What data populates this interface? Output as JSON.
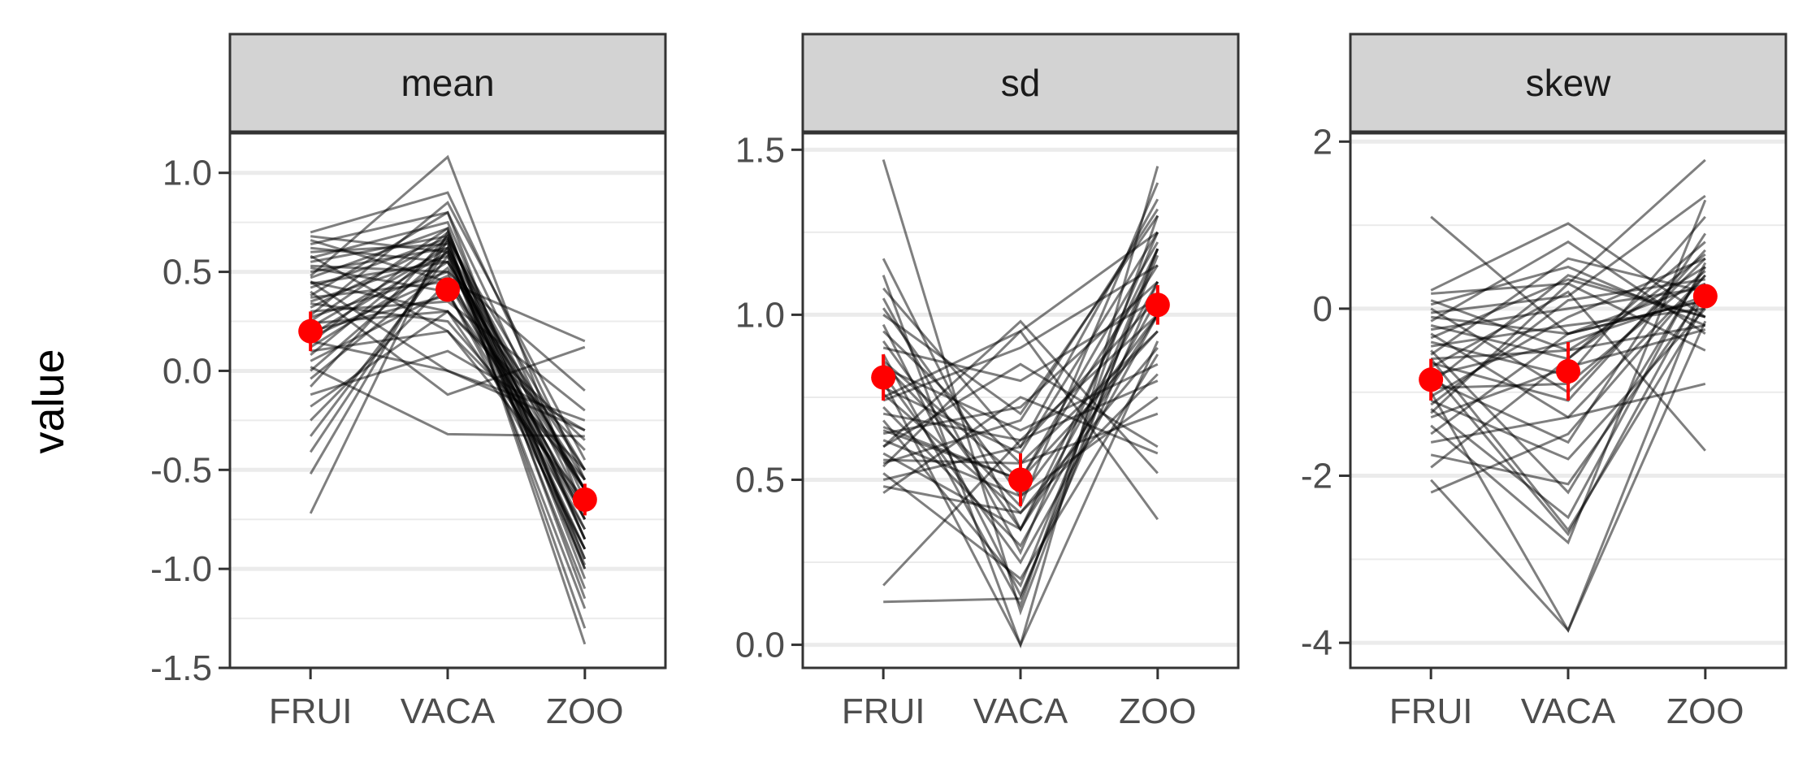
{
  "chart_data": {
    "type": "line",
    "facet_layout": "1 row, 3 columns, independent y scales",
    "ylabel": "value",
    "grid": true,
    "legend": "none",
    "colors": {
      "subject_lines": "#000000",
      "summary_points": "#ff0000",
      "strip_background": "#d3d3d3",
      "gridlines": "#ebebeb"
    },
    "x_categories": [
      "FRUI",
      "VACA",
      "ZOO"
    ],
    "panels": [
      {
        "strip_label": "mean",
        "ylim": [
          -1.5,
          1.2
        ],
        "yticks": [
          1.0,
          0.5,
          0.0,
          -0.5,
          -1.0,
          -1.5
        ],
        "ytick_labels": [
          "1.0",
          "0.5",
          "0.0",
          "-0.5",
          "-1.0",
          "-1.5"
        ],
        "summary": [
          {
            "x": "FRUI",
            "y": 0.2,
            "lo": 0.1,
            "hi": 0.3
          },
          {
            "x": "VACA",
            "y": 0.41,
            "lo": 0.35,
            "hi": 0.47
          },
          {
            "x": "ZOO",
            "y": -0.65,
            "lo": -0.73,
            "hi": -0.57
          }
        ],
        "subject_lines": [
          [
            -0.72,
            0.7,
            -0.85
          ],
          [
            -0.52,
            0.66,
            -1.3
          ],
          [
            -0.41,
            0.62,
            -1.0
          ],
          [
            -0.33,
            0.58,
            -0.9
          ],
          [
            -0.25,
            0.45,
            -0.6
          ],
          [
            -0.18,
            0.3,
            -0.7
          ],
          [
            -0.12,
            0.1,
            -0.3
          ],
          [
            -0.08,
            0.68,
            -1.38
          ],
          [
            -0.04,
            0.52,
            -0.55
          ],
          [
            0.0,
            0.6,
            -0.75
          ],
          [
            0.02,
            -0.32,
            -0.33
          ],
          [
            0.05,
            0.4,
            -0.8
          ],
          [
            0.08,
            0.65,
            -1.1
          ],
          [
            0.1,
            0.2,
            -0.65
          ],
          [
            0.12,
            0.55,
            -0.5
          ],
          [
            0.14,
            0.7,
            -0.95
          ],
          [
            0.15,
            0.0,
            -0.25
          ],
          [
            0.17,
            0.48,
            -0.7
          ],
          [
            0.18,
            0.6,
            -1.2
          ],
          [
            0.2,
            0.38,
            -0.6
          ],
          [
            0.22,
            0.62,
            -0.85
          ],
          [
            0.24,
            0.3,
            -0.4
          ],
          [
            0.25,
            0.72,
            -1.05
          ],
          [
            0.27,
            0.5,
            -0.9
          ],
          [
            0.28,
            0.85,
            -0.45
          ],
          [
            0.3,
            0.35,
            -0.2
          ],
          [
            0.32,
            0.66,
            -0.6
          ],
          [
            0.34,
            0.25,
            -0.55
          ],
          [
            0.35,
            0.58,
            -0.98
          ],
          [
            0.37,
            0.45,
            -0.75
          ],
          [
            0.38,
            0.8,
            -0.65
          ],
          [
            0.4,
            -0.12,
            0.12
          ],
          [
            0.42,
            0.67,
            -0.5
          ],
          [
            0.44,
            0.55,
            -0.8
          ],
          [
            0.45,
            0.3,
            -0.35
          ],
          [
            0.47,
            0.72,
            -1.15
          ],
          [
            0.48,
            1.08,
            -0.72
          ],
          [
            0.5,
            0.62,
            -0.6
          ],
          [
            0.52,
            0.4,
            -0.9
          ],
          [
            0.53,
            0.5,
            -0.1
          ],
          [
            0.55,
            0.68,
            -0.7
          ],
          [
            0.57,
            0.75,
            -0.85
          ],
          [
            0.58,
            0.2,
            -0.5
          ],
          [
            0.6,
            0.64,
            -0.95
          ],
          [
            0.62,
            0.55,
            -0.6
          ],
          [
            0.64,
            0.8,
            -1.0
          ],
          [
            0.66,
            0.45,
            0.15
          ],
          [
            0.68,
            0.6,
            -0.75
          ],
          [
            0.7,
            0.9,
            -0.55
          ],
          [
            0.45,
            0.0,
            -0.3
          ]
        ]
      },
      {
        "strip_label": "sd",
        "ylim": [
          -0.07,
          1.55
        ],
        "yticks": [
          0.0,
          0.5,
          1.0,
          1.5
        ],
        "ytick_labels": [
          "0.0",
          "0.5",
          "1.0",
          "1.5"
        ],
        "summary": [
          {
            "x": "FRUI",
            "y": 0.81,
            "lo": 0.74,
            "hi": 0.88
          },
          {
            "x": "VACA",
            "y": 0.5,
            "lo": 0.42,
            "hi": 0.58
          },
          {
            "x": "ZOO",
            "y": 1.03,
            "lo": 0.97,
            "hi": 1.09
          }
        ],
        "subject_lines": [
          [
            1.47,
            0.1,
            1.2
          ],
          [
            1.17,
            0.35,
            1.1
          ],
          [
            1.12,
            0.0,
            1.45
          ],
          [
            1.08,
            0.6,
            1.35
          ],
          [
            1.05,
            0.28,
            1.25
          ],
          [
            1.02,
            0.45,
            1.0
          ],
          [
            1.0,
            0.7,
            1.3
          ],
          [
            0.97,
            0.15,
            1.1
          ],
          [
            0.95,
            0.55,
            0.95
          ],
          [
            0.92,
            0.35,
            1.2
          ],
          [
            0.9,
            0.8,
            1.05
          ],
          [
            0.88,
            0.12,
            1.3
          ],
          [
            0.86,
            0.5,
            1.15
          ],
          [
            0.84,
            0.65,
            0.85
          ],
          [
            0.82,
            0.25,
            1.0
          ],
          [
            0.8,
            0.0,
            0.92
          ],
          [
            0.78,
            0.58,
            1.25
          ],
          [
            0.76,
            0.4,
            0.9
          ],
          [
            0.74,
            0.9,
            1.15
          ],
          [
            0.72,
            0.3,
            1.05
          ],
          [
            0.7,
            0.62,
            0.8
          ],
          [
            0.68,
            0.18,
            1.2
          ],
          [
            0.66,
            0.5,
            0.95
          ],
          [
            0.64,
            0.72,
            1.1
          ],
          [
            0.62,
            0.45,
            0.75
          ],
          [
            0.6,
            0.85,
            0.6
          ],
          [
            0.58,
            0.35,
            1.0
          ],
          [
            0.56,
            0.55,
            0.7
          ],
          [
            0.54,
            0.95,
            1.25
          ],
          [
            0.52,
            0.2,
            0.88
          ],
          [
            0.5,
            0.6,
            1.05
          ],
          [
            0.48,
            0.4,
            0.82
          ],
          [
            0.46,
            0.75,
            0.58
          ],
          [
            0.6,
            0.98,
            0.52
          ],
          [
            0.75,
            0.95,
            0.38
          ],
          [
            0.55,
            0.68,
            1.32
          ],
          [
            0.18,
            0.62,
            1.0
          ],
          [
            0.13,
            0.14,
            1.18
          ],
          [
            0.85,
            0.42,
            1.4
          ],
          [
            0.65,
            0.5,
            1.22
          ]
        ]
      },
      {
        "strip_label": "skew",
        "ylim": [
          -4.3,
          2.1
        ],
        "yticks": [
          2,
          0,
          -2,
          -4
        ],
        "ytick_labels": [
          "2",
          "0",
          "-2",
          "-4"
        ],
        "summary": [
          {
            "x": "FRUI",
            "y": -0.85,
            "lo": -1.1,
            "hi": -0.6
          },
          {
            "x": "VACA",
            "y": -0.75,
            "lo": -1.1,
            "hi": -0.4
          },
          {
            "x": "ZOO",
            "y": 0.15,
            "lo": 0.05,
            "hi": 0.25
          }
        ],
        "subject_lines": [
          [
            1.1,
            -0.3,
            0.3
          ],
          [
            0.22,
            1.02,
            -0.1
          ],
          [
            0.18,
            0.3,
            1.78
          ],
          [
            0.1,
            -0.5,
            0.5
          ],
          [
            0.05,
            0.5,
            -0.2
          ],
          [
            0.0,
            -1.0,
            0.6
          ],
          [
            -0.05,
            0.15,
            1.35
          ],
          [
            -0.1,
            -0.3,
            0.1
          ],
          [
            -0.15,
            0.8,
            -0.3
          ],
          [
            -0.2,
            -0.6,
            0.8
          ],
          [
            -0.25,
            0.0,
            0.25
          ],
          [
            -0.3,
            -1.3,
            0.4
          ],
          [
            -0.35,
            0.35,
            -0.1
          ],
          [
            -0.4,
            -0.8,
            1.1
          ],
          [
            -0.45,
            -0.2,
            0.0
          ],
          [
            -0.5,
            -2.2,
            0.5
          ],
          [
            -0.55,
            0.6,
            0.2
          ],
          [
            -0.6,
            -0.5,
            -0.2
          ],
          [
            -0.65,
            -1.1,
            0.7
          ],
          [
            -0.7,
            0.2,
            -1.7
          ],
          [
            -0.75,
            -2.7,
            0.3
          ],
          [
            -0.8,
            -0.4,
            0.15
          ],
          [
            -0.85,
            -1.6,
            0.9
          ],
          [
            -0.9,
            0.4,
            -0.1
          ],
          [
            -0.95,
            -0.9,
            0.45
          ],
          [
            -1.0,
            -3.85,
            0.25
          ],
          [
            -1.05,
            -0.1,
            0.6
          ],
          [
            -1.1,
            -1.8,
            0.0
          ],
          [
            -1.15,
            0.1,
            0.35
          ],
          [
            -1.2,
            -2.5,
            0.55
          ],
          [
            -1.3,
            -0.7,
            -0.25
          ],
          [
            -1.4,
            -2.8,
            1.3
          ],
          [
            -1.5,
            -0.3,
            0.1
          ],
          [
            -1.6,
            -1.3,
            -0.9
          ],
          [
            -1.75,
            -2.1,
            0.2
          ],
          [
            -1.9,
            -0.6,
            0.65
          ],
          [
            -2.05,
            -3.85,
            -0.15
          ],
          [
            -2.2,
            -1.5,
            0.4
          ],
          [
            -1.25,
            0.3,
            -0.5
          ],
          [
            -0.6,
            -2.65,
            0.05
          ]
        ]
      }
    ]
  }
}
